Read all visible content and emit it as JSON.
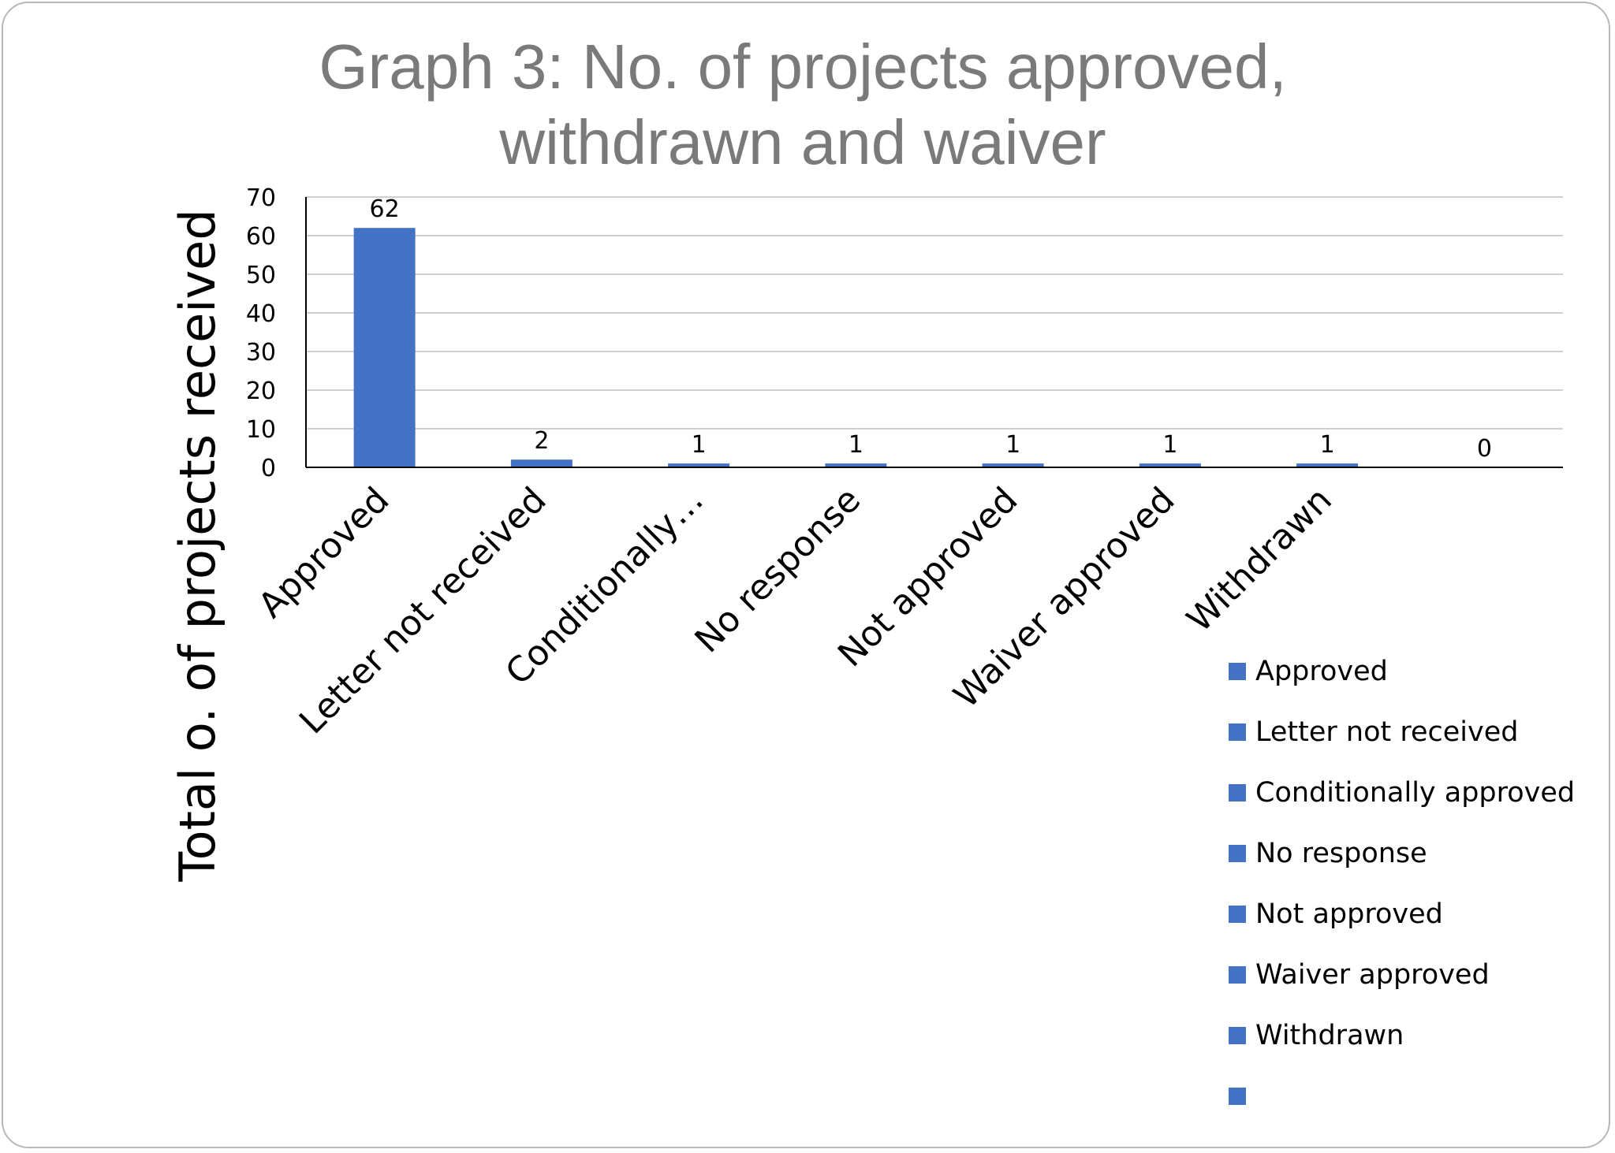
{
  "chart_data": {
    "type": "bar",
    "title_lines": [
      "Graph 3: No. of projects approved,",
      "withdrawn and waiver"
    ],
    "ylabel": "Total o. of projects received",
    "xlabel": "",
    "ylim": [
      0,
      70
    ],
    "yticks": [
      "0",
      "10",
      "20",
      "30",
      "40",
      "50",
      "60",
      "70"
    ],
    "categories": [
      "Approved",
      "Letter not received",
      "Conditionally…",
      "No response",
      "Not approved",
      "Waiver approved",
      "Withdrawn",
      ""
    ],
    "values": [
      62,
      2,
      1,
      1,
      1,
      1,
      1,
      0
    ],
    "data_labels": [
      "62",
      "2",
      "1",
      "1",
      "1",
      "1",
      "1",
      "0"
    ],
    "legend": {
      "placement": "right",
      "entries": [
        "Approved",
        "Letter not received",
        "Conditionally approved",
        "No response",
        "Not approved",
        "Waiver approved",
        "Withdrawn",
        ""
      ]
    },
    "grid": true,
    "bar_color": "#4472c4",
    "grid_color": "#d0d0d0",
    "axis_color": "#000000"
  }
}
